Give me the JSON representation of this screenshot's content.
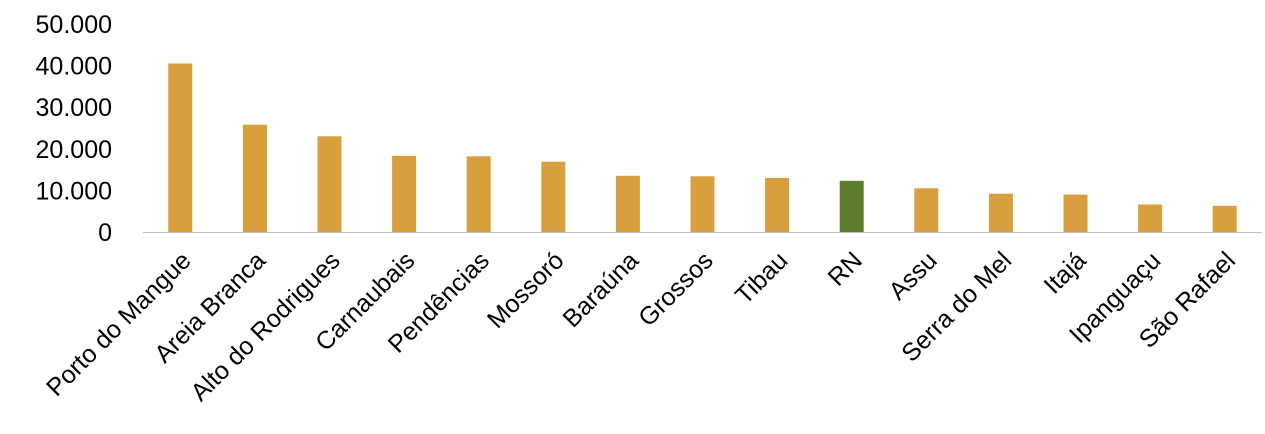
{
  "chart_data": {
    "type": "bar",
    "title": "",
    "xlabel": "",
    "ylabel": "",
    "ylim": [
      0,
      50000
    ],
    "grid": false,
    "legend": "none",
    "y_ticks": [
      "0",
      "10.000",
      "20.000",
      "30.000",
      "40.000",
      "50.000"
    ],
    "categories": [
      "Porto do Mangue",
      "Areia Branca",
      "Alto do Rodrigues",
      "Carnaubais",
      "Pendências",
      "Mossoró",
      "Baraúna",
      "Grossos",
      "Tibau",
      "RN",
      "Assu",
      "Serra do Mel",
      "Itajá",
      "Ipanguaçu",
      "São Rafael"
    ],
    "values": [
      40500,
      25800,
      23000,
      18300,
      18200,
      16900,
      13500,
      13400,
      13000,
      12300,
      10500,
      9200,
      9000,
      6600,
      6300
    ],
    "colors": {
      "default": "#d8a03c",
      "highlight": "#5f7d2e",
      "axis": "#bfbfbf"
    },
    "highlight_category": "RN"
  }
}
